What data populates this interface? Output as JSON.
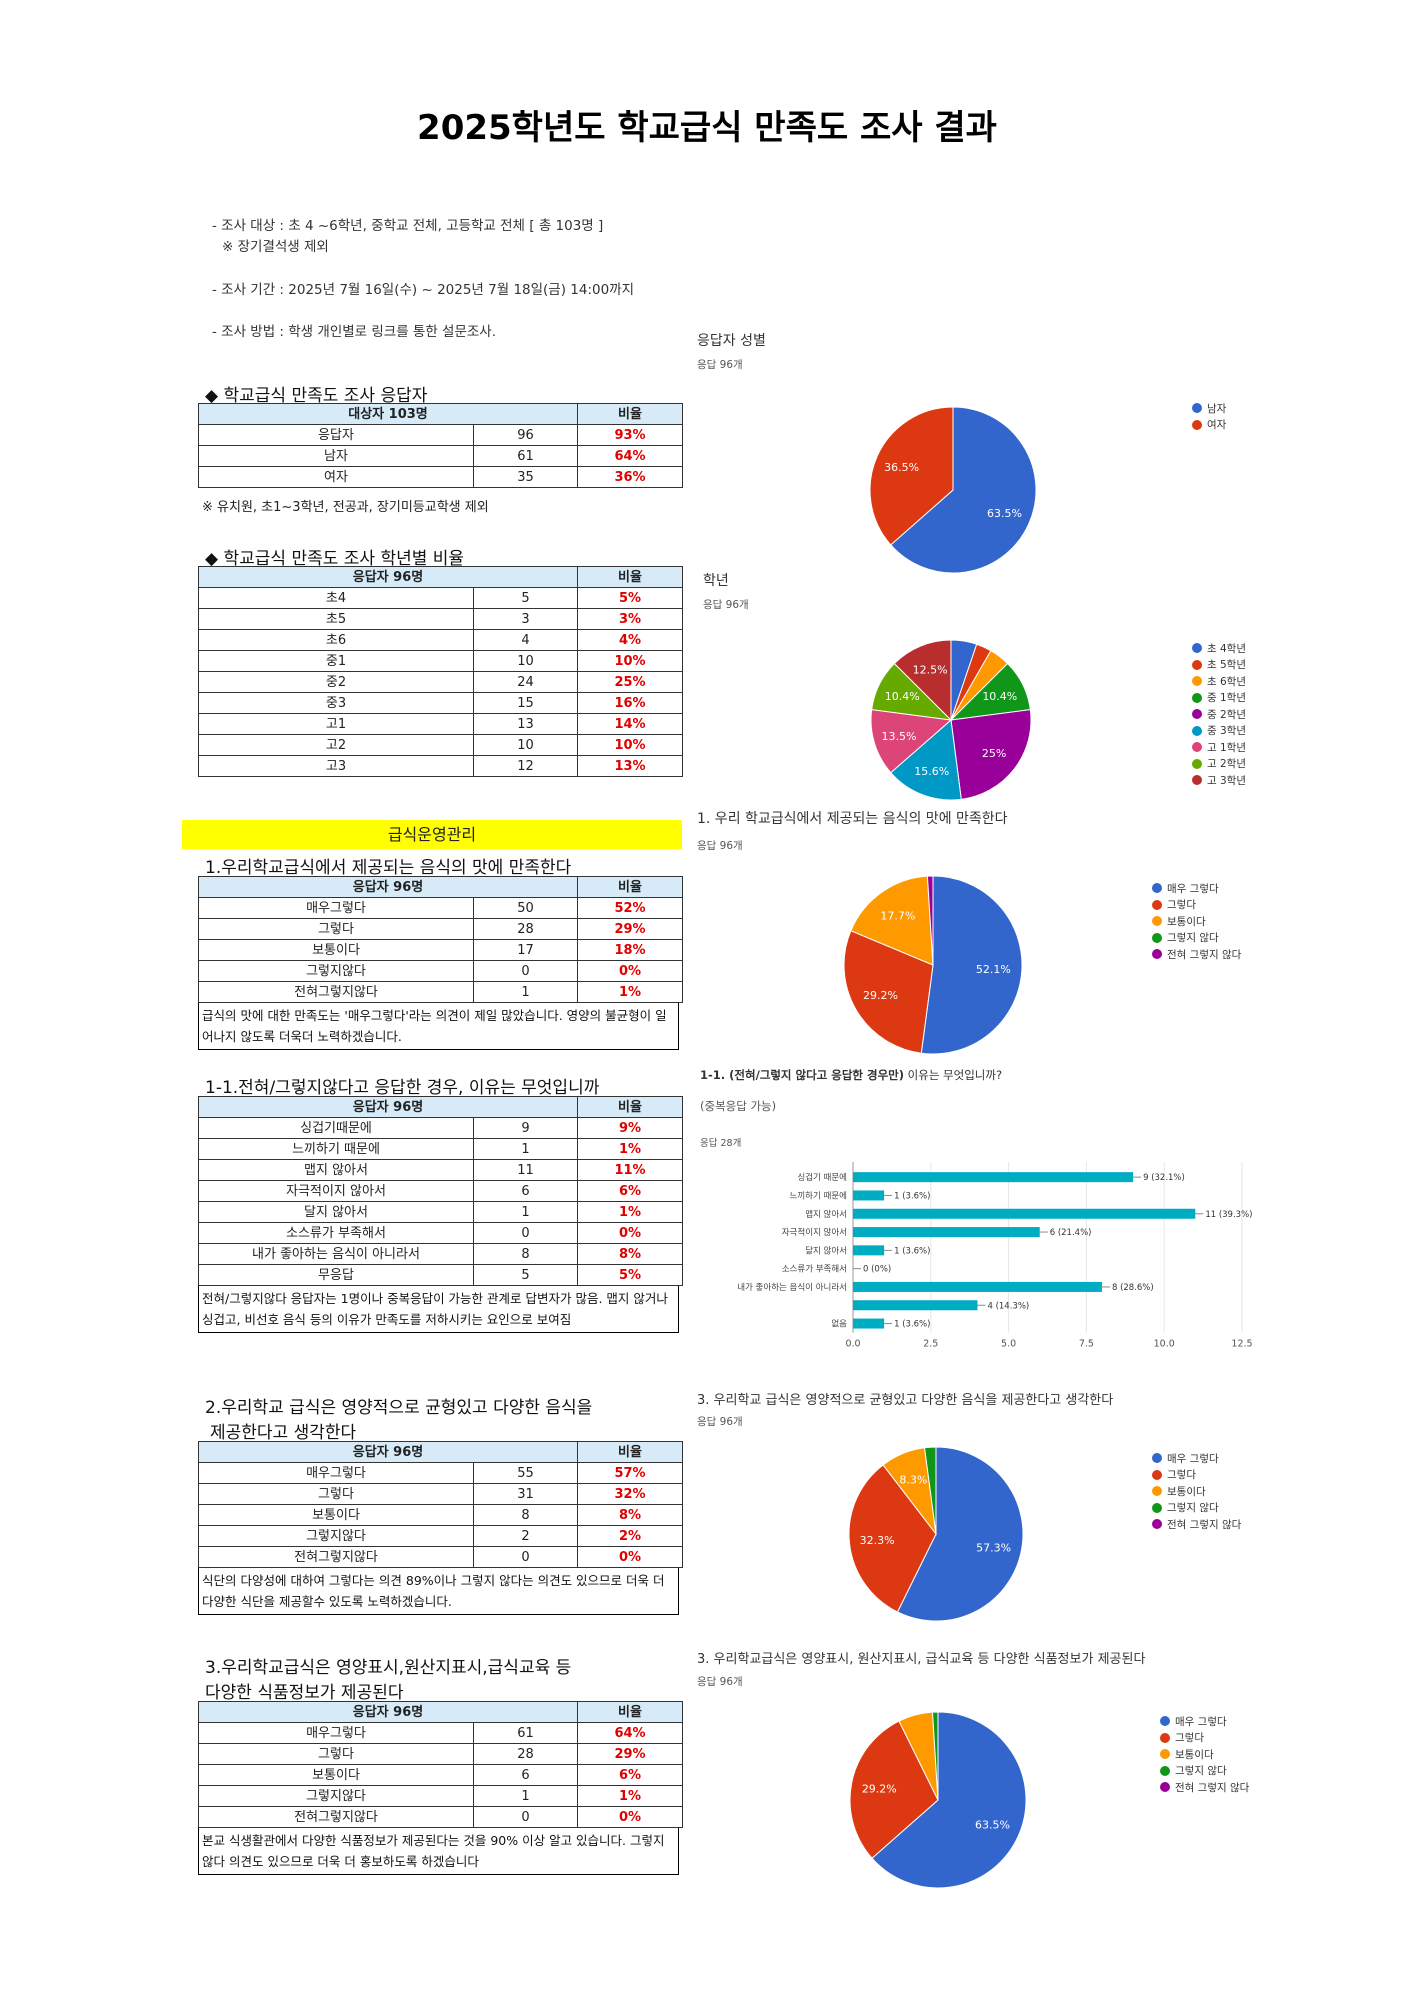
{
  "title": "2025학년도 학교급식 만족도 조사 결과",
  "info": {
    "target": "- 조사 대상 : 초 4 ~6학년, 중학교 전체, 고등학교 전체 [ 총 103명 ]",
    "exclusion": "※ 장기결석생 제외",
    "period": "- 조사 기간 : 2025년 7월 16일(수) ~ 2025년 7월 18일(금) 14:00까지",
    "method": "- 조사 방법 : 학생 개인별로 링크를 통한 설문조사."
  },
  "respondents": {
    "heading": "◆ 학교급식 만족도 조사 응답자",
    "header": [
      "대상자 103명",
      "비율"
    ],
    "rows": [
      {
        "label": "응답자",
        "count": "96",
        "pct": "93%"
      },
      {
        "label": "남자",
        "count": "61",
        "pct": "64%"
      },
      {
        "label": "여자",
        "count": "35",
        "pct": "36%"
      }
    ],
    "note": "※ 유치원, 초1~3학년, 전공과, 장기미등교학생 제외"
  },
  "grades": {
    "heading": "◆ 학교급식 만족도 조사 학년별 비율",
    "header": [
      "응답자 96명",
      "비율"
    ],
    "rows": [
      {
        "label": "초4",
        "count": "5",
        "pct": "5%"
      },
      {
        "label": "초5",
        "count": "3",
        "pct": "3%"
      },
      {
        "label": "초6",
        "count": "4",
        "pct": "4%"
      },
      {
        "label": "중1",
        "count": "10",
        "pct": "10%"
      },
      {
        "label": "중2",
        "count": "24",
        "pct": "25%"
      },
      {
        "label": "중3",
        "count": "15",
        "pct": "16%"
      },
      {
        "label": "고1",
        "count": "13",
        "pct": "14%"
      },
      {
        "label": "고2",
        "count": "10",
        "pct": "10%"
      },
      {
        "label": "고3",
        "count": "12",
        "pct": "13%"
      }
    ]
  },
  "ops_title": "급식운영관리",
  "q1": {
    "heading": "1.우리학교급식에서 제공되는 음식의 맛에 만족한다",
    "header": [
      "응답자 96명",
      "비율"
    ],
    "rows": [
      {
        "label": "매우그렇다",
        "count": "50",
        "pct": "52%"
      },
      {
        "label": "그렇다",
        "count": "28",
        "pct": "29%"
      },
      {
        "label": "보통이다",
        "count": "17",
        "pct": "18%"
      },
      {
        "label": "그렇지않다",
        "count": "0",
        "pct": "0%"
      },
      {
        "label": "전혀그렇지않다",
        "count": "1",
        "pct": "1%"
      }
    ],
    "comment": " 급식의 맛에 대한 만족도는 '매우그렇다'라는 의견이 제일 많았습니다.  영양의 불균형이 일어나지 않도록 더욱더 노력하겠습니다."
  },
  "q11": {
    "heading": "1-1.전혀/그렇지않다고 응답한 경우, 이유는 무엇입니까",
    "header": [
      "응답자 96명",
      "비율"
    ],
    "rows": [
      {
        "label": "싱겁기때문에",
        "count": "9",
        "pct": "9%"
      },
      {
        "label": "느끼하기 때문에",
        "count": "1",
        "pct": "1%"
      },
      {
        "label": "맵지 않아서",
        "count": "11",
        "pct": "11%"
      },
      {
        "label": "자극적이지 않아서",
        "count": "6",
        "pct": "6%"
      },
      {
        "label": "달지 않아서",
        "count": "1",
        "pct": "1%"
      },
      {
        "label": "소스류가 부족해서",
        "count": "0",
        "pct": "0%"
      },
      {
        "label": "내가 좋아하는 음식이 아니라서",
        "count": "8",
        "pct": "8%"
      },
      {
        "label": "무응답",
        "count": "5",
        "pct": "5%"
      }
    ],
    "comment": " 전혀/그렇지않다 응답자는 1명이나 중복응답이 가능한 관계로 답변자가 많음. 맵지 않거나 싱겁고, 비선호 음식 등의 이유가 만족도를 저하시키는 요인으로 보여짐"
  },
  "q2": {
    "heading_line1": "2.우리학교 급식은 영양적으로 균형있고 다양한 음식을",
    "heading_line2": "제공한다고 생각한다",
    "header": [
      "응답자 96명",
      "비율"
    ],
    "rows": [
      {
        "label": "매우그렇다",
        "count": "55",
        "pct": "57%"
      },
      {
        "label": "그렇다",
        "count": "31",
        "pct": "32%"
      },
      {
        "label": "보통이다",
        "count": "8",
        "pct": "8%"
      },
      {
        "label": "그렇지않다",
        "count": "2",
        "pct": "2%"
      },
      {
        "label": "전혀그렇지않다",
        "count": "0",
        "pct": "0%"
      }
    ],
    "comment": " 식단의 다양성에 대하여 그렇다는 의견 89%이나 그렇지 않다는 의견도 있으므로 더욱 더 다양한 식단을 제공할수 있도록 노력하겠습니다."
  },
  "q3": {
    "heading_line1": "3.우리학교급식은 영양표시,원산지표시,급식교육 등",
    "heading_line2": "다양한 식품정보가 제공된다",
    "header": [
      "응답자 96명",
      "비율"
    ],
    "rows": [
      {
        "label": "매우그렇다",
        "count": "61",
        "pct": "64%"
      },
      {
        "label": "그렇다",
        "count": "28",
        "pct": "29%"
      },
      {
        "label": "보통이다",
        "count": "6",
        "pct": "6%"
      },
      {
        "label": "그렇지않다",
        "count": "1",
        "pct": "1%"
      },
      {
        "label": "전혀그렇지않다",
        "count": "0",
        "pct": "0%"
      }
    ],
    "comment": "본교 식생활관에서 다양한 식품정보가 제공된다는 것을 90% 이상 알고 있습니다. 그렇지 않다 의견도 있으므로 더욱 더 홍보하도록 하겠습니다"
  },
  "chart_data": [
    {
      "type": "pie",
      "title": "응답자 성별",
      "subtitle": "응답 96개",
      "labels": [
        "남자",
        "여자"
      ],
      "values": [
        63.5,
        36.5
      ],
      "data_labels": [
        "63.5%",
        "36.5%"
      ],
      "colors": [
        "#3366cc",
        "#dc3912"
      ]
    },
    {
      "type": "pie",
      "title": "학년",
      "subtitle": "응답 96개",
      "labels": [
        "초 4학년",
        "초 5학년",
        "초 6학년",
        "중 1학년",
        "중 2학년",
        "중 3학년",
        "고 1학년",
        "고 2학년",
        "고 3학년"
      ],
      "values": [
        5.2,
        3.1,
        4.2,
        10.4,
        25,
        15.6,
        13.5,
        10.4,
        12.5
      ],
      "data_labels": [
        "",
        "",
        "",
        "10.4%",
        "25%",
        "15.6%",
        "13.5%",
        "10.4%",
        "12.5%"
      ],
      "colors": [
        "#3366cc",
        "#dc3912",
        "#ff9900",
        "#109618",
        "#990099",
        "#0099c6",
        "#dd4477",
        "#66aa00",
        "#b82e2e"
      ]
    },
    {
      "type": "pie",
      "title": "1. 우리 학교급식에서 제공되는 음식의 맛에 만족한다",
      "subtitle": "응답 96개",
      "labels": [
        "매우 그렇다",
        "그렇다",
        "보통이다",
        "그렇지 않다",
        "전혀 그렇지 않다"
      ],
      "values": [
        52.1,
        29.2,
        17.7,
        0,
        1
      ],
      "data_labels": [
        "52.1%",
        "29.2%",
        "17.7%",
        "",
        ""
      ],
      "colors": [
        "#3366cc",
        "#dc3912",
        "#ff9900",
        "#109618",
        "#990099"
      ]
    },
    {
      "type": "bar",
      "orientation": "horizontal",
      "title_bold": "1-1. (전혀/그렇지 않다고 응답한 경우만)",
      "title_rest": " 이유는 무엇입니까?",
      "note": "(중복응답 가능)",
      "subtitle": "응답 28개",
      "categories": [
        "싱겁기 때문에",
        "느끼하기 때문에",
        "맵지 않아서",
        "자극적이지 않아서",
        "달지 않아서",
        "소스류가 부족해서",
        "내가 좋아하는 음식이 아니라서",
        "",
        "없음"
      ],
      "values": [
        9,
        1,
        11,
        6,
        1,
        0,
        8,
        4,
        1
      ],
      "data_labels": [
        "9 (32.1%)",
        "1 (3.6%)",
        "11 (39.3%)",
        "6 (21.4%)",
        "1 (3.6%)",
        "0 (0%)",
        "8 (28.6%)",
        "4 (14.3%)",
        "1 (3.6%)"
      ],
      "xlim": [
        0,
        12.5
      ],
      "xticks": [
        "0.0",
        "2.5",
        "5.0",
        "7.5",
        "10.0",
        "12.5"
      ],
      "color": "#00acc1"
    },
    {
      "type": "pie",
      "title": "3. 우리학교 급식은 영양적으로 균형있고 다양한 음식을 제공한다고 생각한다",
      "subtitle": "응답 96개",
      "labels": [
        "매우 그렇다",
        "그렇다",
        "보통이다",
        "그렇지 않다",
        "전혀 그렇지 않다"
      ],
      "values": [
        57.3,
        32.3,
        8.3,
        2.1,
        0
      ],
      "data_labels": [
        "57.3%",
        "32.3%",
        "8.3%",
        "",
        ""
      ],
      "colors": [
        "#3366cc",
        "#dc3912",
        "#ff9900",
        "#109618",
        "#990099"
      ]
    },
    {
      "type": "pie",
      "title": "3. 우리학교급식은 영양표시, 원산지표시, 급식교육 등 다양한 식품정보가 제공된다",
      "subtitle": "응답 96개",
      "labels": [
        "매우 그렇다",
        "그렇다",
        "보통이다",
        "그렇지 않다",
        "전혀 그렇지 않다"
      ],
      "values": [
        63.5,
        29.2,
        6.3,
        1,
        0
      ],
      "data_labels": [
        "63.5%",
        "29.2%",
        "",
        "",
        ""
      ],
      "colors": [
        "#3366cc",
        "#dc3912",
        "#ff9900",
        "#109618",
        "#990099"
      ]
    }
  ]
}
